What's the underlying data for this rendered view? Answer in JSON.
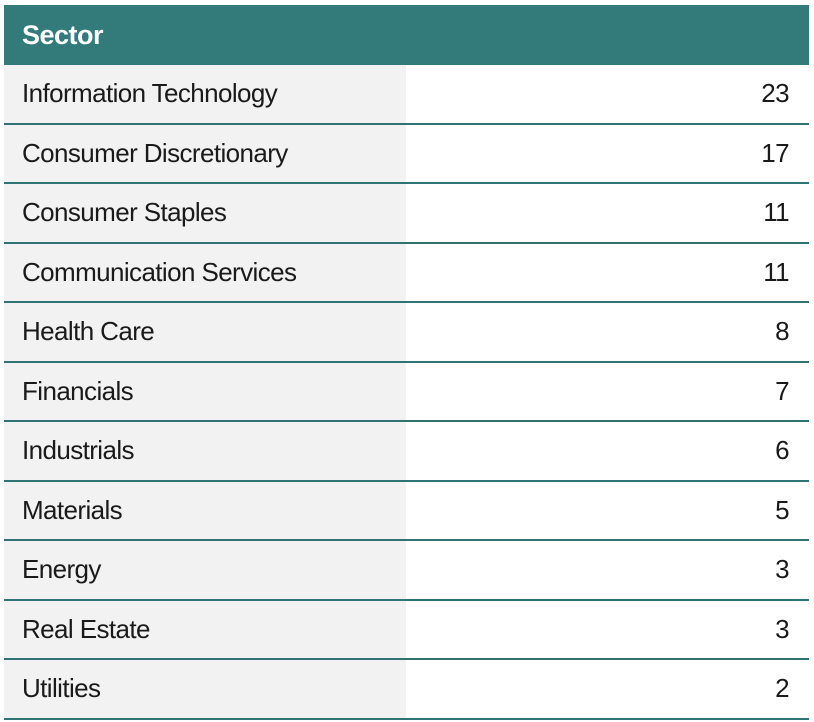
{
  "colors": {
    "header_bg": "#337b7b",
    "row_label_bg": "#f2f2f2",
    "row_value_bg": "#ffffff",
    "divider": "#2f7373",
    "text": "#1a1a1a"
  },
  "table": {
    "header": "Sector"
  },
  "chart_data": {
    "type": "table",
    "columns": [
      "Sector",
      ""
    ],
    "rows": [
      {
        "label": "Information Technology",
        "value": "23"
      },
      {
        "label": "Consumer Discretionary",
        "value": "17"
      },
      {
        "label": "Consumer Staples",
        "value": "11"
      },
      {
        "label": "Communication Services",
        "value": "11"
      },
      {
        "label": "Health Care",
        "value": "8"
      },
      {
        "label": "Financials",
        "value": "7"
      },
      {
        "label": "Industrials",
        "value": "6"
      },
      {
        "label": "Materials",
        "value": "5"
      },
      {
        "label": "Energy",
        "value": "3"
      },
      {
        "label": "Real Estate",
        "value": "3"
      },
      {
        "label": "Utilities",
        "value": "2"
      }
    ]
  }
}
